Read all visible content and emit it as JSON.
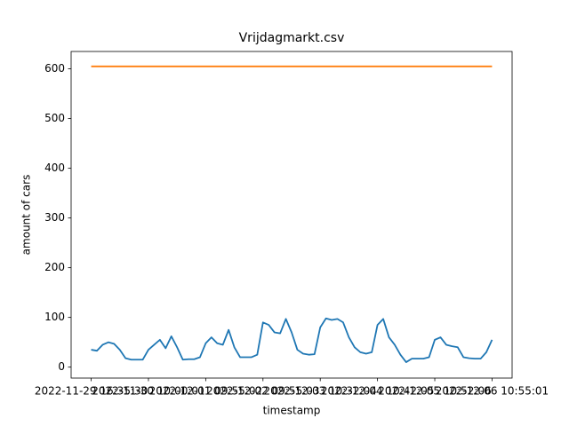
{
  "chart_data": {
    "type": "line",
    "title": "Vrijdagmarkt.csv",
    "x_label": "timestamp",
    "y_label": "amount of cars",
    "x": [
      0,
      1,
      2,
      3,
      4,
      5,
      6,
      7,
      8,
      9,
      10,
      11,
      12,
      13,
      14,
      15,
      16,
      17,
      18,
      19,
      20,
      21,
      22,
      23,
      24,
      25,
      26,
      27,
      28,
      29,
      30,
      31,
      32,
      33,
      34,
      35,
      36,
      37,
      38,
      39,
      40,
      41,
      42,
      43,
      44,
      45,
      46,
      47,
      48,
      49,
      50,
      51,
      52,
      53,
      54,
      55,
      56,
      57,
      58,
      59,
      60,
      61,
      62,
      63,
      64,
      65,
      66,
      67,
      68,
      69,
      70
    ],
    "series": [
      {
        "color": "#1f77b4",
        "values": [
          35,
          33,
          45,
          50,
          47,
          35,
          18,
          15,
          15,
          15,
          35,
          45,
          55,
          38,
          62,
          40,
          15,
          16,
          16,
          20,
          48,
          60,
          48,
          45,
          75,
          40,
          20,
          20,
          20,
          25,
          90,
          85,
          70,
          68,
          97,
          70,
          35,
          27,
          25,
          26,
          80,
          98,
          95,
          97,
          90,
          60,
          40,
          30,
          27,
          30,
          85,
          97,
          60,
          45,
          25,
          10,
          17,
          17,
          17,
          20,
          55,
          60,
          45,
          42,
          40,
          20,
          18,
          17,
          17,
          30,
          55
        ]
      },
      {
        "color": "#ff7f0e",
        "values": [
          605,
          605,
          605,
          605,
          605,
          605,
          605,
          605,
          605,
          605,
          605,
          605,
          605,
          605,
          605,
          605,
          605,
          605,
          605,
          605,
          605,
          605,
          605,
          605,
          605,
          605,
          605,
          605,
          605,
          605,
          605,
          605,
          605,
          605,
          605,
          605,
          605,
          605,
          605,
          605,
          605,
          605,
          605,
          605,
          605,
          605,
          605,
          605,
          605,
          605,
          605,
          605,
          605,
          605,
          605,
          605,
          605,
          605,
          605,
          605,
          605,
          605,
          605,
          605,
          605,
          605,
          605,
          605,
          605,
          605,
          605
        ]
      }
    ],
    "xlim": [
      -3.5,
      73.5
    ],
    "xticks": [
      {
        "value": 0,
        "label": "2022-11-29 16:35:30"
      },
      {
        "value": 10,
        "label": "2022-11-30 10:00:01"
      },
      {
        "value": 20,
        "label": "2022-12-01 09:55:02"
      },
      {
        "value": 30,
        "label": "2022-12-02 09:55:03"
      },
      {
        "value": 40,
        "label": "2022-12-03 10:32:04"
      },
      {
        "value": 50,
        "label": "2022-12-04 10:42:05"
      },
      {
        "value": 60,
        "label": "2022-12-05 10:52:06"
      },
      {
        "value": 70,
        "label": "2022-12-06 10:55:01"
      }
    ],
    "ylim": [
      -22,
      635
    ],
    "yticks": [
      0,
      100,
      200,
      300,
      400,
      500,
      600
    ]
  }
}
